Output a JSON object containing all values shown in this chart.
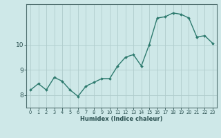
{
  "x": [
    0,
    1,
    2,
    3,
    4,
    5,
    6,
    7,
    8,
    9,
    10,
    11,
    12,
    13,
    14,
    15,
    16,
    17,
    18,
    19,
    20,
    21,
    22,
    23
  ],
  "y": [
    8.2,
    8.45,
    8.2,
    8.7,
    8.55,
    8.2,
    7.95,
    8.35,
    8.5,
    8.65,
    8.65,
    9.15,
    9.5,
    9.6,
    9.15,
    10.0,
    11.05,
    11.1,
    11.25,
    11.2,
    11.05,
    10.3,
    10.35,
    10.05
  ],
  "line_color": "#2d7a6e",
  "marker": "D",
  "marker_size": 2.0,
  "linewidth": 1.0,
  "xlabel": "Humidex (Indice chaleur)",
  "xlim": [
    -0.5,
    23.5
  ],
  "ylim": [
    7.5,
    11.6
  ],
  "yticks": [
    8,
    9,
    10
  ],
  "xticks": [
    0,
    1,
    2,
    3,
    4,
    5,
    6,
    7,
    8,
    9,
    10,
    11,
    12,
    13,
    14,
    15,
    16,
    17,
    18,
    19,
    20,
    21,
    22,
    23
  ],
  "bg_color": "#cee8e8",
  "grid_color": "#b0cccc",
  "axes_color": "#507070",
  "font_color": "#2a5050",
  "xlabel_fontsize": 6.0,
  "xtick_fontsize": 4.8,
  "ytick_fontsize": 6.5
}
